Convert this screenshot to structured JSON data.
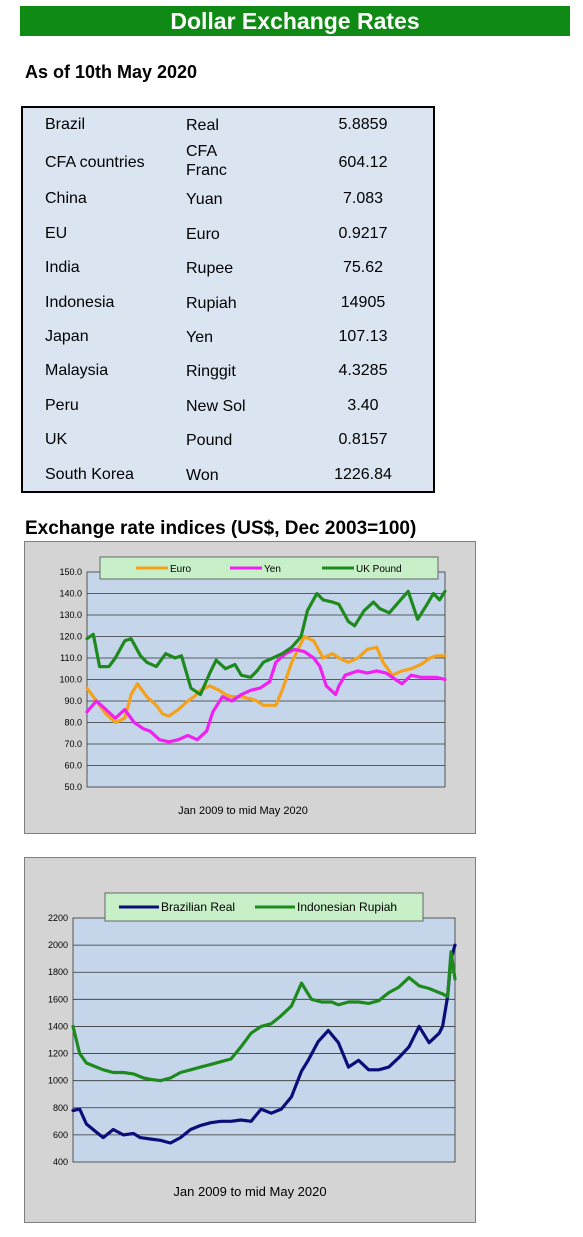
{
  "header": {
    "title": "Dollar Exchange Rates",
    "as_of": "As of 10th May 2020"
  },
  "rates_table": {
    "rows": [
      {
        "country": "Brazil",
        "currency": "Real",
        "rate": "5.8859"
      },
      {
        "country": "CFA countries",
        "currency": "CFA Franc",
        "rate": "604.12"
      },
      {
        "country": "China",
        "currency": "Yuan",
        "rate": "7.083"
      },
      {
        "country": "EU",
        "currency": "Euro",
        "rate": "0.9217"
      },
      {
        "country": "India",
        "currency": "Rupee",
        "rate": "75.62"
      },
      {
        "country": "Indonesia",
        "currency": "Rupiah",
        "rate": "14905"
      },
      {
        "country": "Japan",
        "currency": "Yen",
        "rate": "107.13"
      },
      {
        "country": "Malaysia",
        "currency": "Ringgit",
        "rate": "4.3285"
      },
      {
        "country": "Peru",
        "currency": "New Sol",
        "rate": "3.40"
      },
      {
        "country": "UK",
        "currency": "Pound",
        "rate": "0.8157"
      },
      {
        "country": "South Korea",
        "currency": "Won",
        "rate": "1226.84"
      }
    ]
  },
  "section_title": "Exchange rate indices (US$, Dec 2003=100)",
  "chart_data": [
    {
      "type": "line",
      "caption": "Jan 2009  to mid May 2020",
      "ylim": [
        50,
        150
      ],
      "yticks": [
        "50.0",
        "60.0",
        "70.0",
        "80.0",
        "90.0",
        "100.0",
        "110.0",
        "120.0",
        "130.0",
        "140.0",
        "150.0"
      ],
      "grid": true,
      "legend_position": "top",
      "x_range": [
        2009.0,
        2020.37
      ],
      "series": [
        {
          "name": "Euro",
          "color": "#f4a21c",
          "x": [
            2009.0,
            2009.3,
            2009.6,
            2009.9,
            2010.2,
            2010.4,
            2010.6,
            2010.9,
            2011.2,
            2011.4,
            2011.6,
            2011.9,
            2012.2,
            2012.4,
            2012.6,
            2012.9,
            2013.2,
            2013.4,
            2013.6,
            2013.9,
            2014.2,
            2014.4,
            2014.6,
            2014.9,
            2015.0,
            2015.2,
            2015.5,
            2015.9,
            2016.2,
            2016.5,
            2016.8,
            2017.0,
            2017.3,
            2017.6,
            2017.9,
            2018.2,
            2018.4,
            2018.7,
            2019.0,
            2019.3,
            2019.6,
            2019.9,
            2020.1,
            2020.37
          ],
          "y": [
            96,
            90,
            84,
            80,
            82,
            93,
            98,
            92,
            88,
            84,
            83,
            86,
            90,
            92,
            95,
            97,
            95,
            93,
            92,
            92,
            91,
            90,
            88,
            88,
            88,
            95,
            108,
            120,
            118,
            110,
            112,
            110,
            108,
            110,
            114,
            115,
            108,
            102,
            104,
            105,
            107,
            110,
            111,
            111
          ]
        },
        {
          "name": "Yen",
          "color": "#f020f0",
          "x": [
            2009.0,
            2009.3,
            2009.6,
            2009.9,
            2010.2,
            2010.5,
            2010.8,
            2011.0,
            2011.3,
            2011.6,
            2011.9,
            2012.2,
            2012.5,
            2012.8,
            2013.0,
            2013.3,
            2013.6,
            2013.9,
            2014.2,
            2014.5,
            2014.8,
            2015.0,
            2015.3,
            2015.6,
            2015.9,
            2016.2,
            2016.4,
            2016.6,
            2016.9,
            2017.0,
            2017.2,
            2017.6,
            2017.9,
            2018.2,
            2018.5,
            2018.8,
            2019.0,
            2019.3,
            2019.6,
            2019.9,
            2020.1,
            2020.37
          ],
          "y": [
            85,
            90,
            86,
            82,
            86,
            80,
            77,
            76,
            72,
            71,
            72,
            74,
            72,
            76,
            85,
            92,
            90,
            93,
            95,
            96,
            99,
            108,
            112,
            114,
            113,
            110,
            106,
            97,
            93,
            97,
            102,
            104,
            103,
            104,
            103,
            100,
            98,
            102,
            101,
            101,
            101,
            100
          ]
        },
        {
          "name": "UK Pound",
          "color": "#1e8a1e",
          "x": [
            2009.0,
            2009.2,
            2009.4,
            2009.7,
            2009.9,
            2010.2,
            2010.4,
            2010.7,
            2010.9,
            2011.2,
            2011.5,
            2011.8,
            2012.0,
            2012.3,
            2012.6,
            2012.9,
            2013.1,
            2013.4,
            2013.7,
            2013.9,
            2014.2,
            2014.4,
            2014.6,
            2014.9,
            2015.2,
            2015.5,
            2015.8,
            2016.0,
            2016.3,
            2016.5,
            2016.8,
            2017.0,
            2017.3,
            2017.5,
            2017.8,
            2018.1,
            2018.3,
            2018.6,
            2018.9,
            2019.2,
            2019.5,
            2019.8,
            2020.0,
            2020.2,
            2020.37
          ],
          "y": [
            119,
            121,
            106,
            106,
            110,
            118,
            119,
            111,
            108,
            106,
            112,
            110,
            111,
            96,
            93,
            103,
            109,
            105,
            107,
            102,
            101,
            104,
            108,
            110,
            112,
            115,
            120,
            132,
            140,
            137,
            136,
            135,
            127,
            125,
            132,
            136,
            133,
            131,
            136,
            141,
            128,
            135,
            140,
            137,
            141
          ]
        }
      ]
    },
    {
      "type": "line",
      "caption": "Jan 2009  to mid May 2020",
      "ylim": [
        400,
        2200
      ],
      "yticks": [
        "400",
        "600",
        "800",
        "1000",
        "1200",
        "1400",
        "1600",
        "1800",
        "2000",
        "2200"
      ],
      "grid": true,
      "legend_position": "top",
      "x_range": [
        2009.0,
        2020.37
      ],
      "series": [
        {
          "name": "Brazilian Real",
          "color": "#0d0d7a",
          "x": [
            2009.0,
            2009.2,
            2009.4,
            2009.7,
            2009.9,
            2010.2,
            2010.5,
            2010.8,
            2011.0,
            2011.3,
            2011.6,
            2011.9,
            2012.2,
            2012.5,
            2012.8,
            2013.1,
            2013.4,
            2013.7,
            2014.0,
            2014.3,
            2014.6,
            2014.9,
            2015.2,
            2015.5,
            2015.8,
            2016.0,
            2016.3,
            2016.6,
            2016.9,
            2017.2,
            2017.5,
            2017.8,
            2018.1,
            2018.4,
            2018.7,
            2019.0,
            2019.3,
            2019.6,
            2019.9,
            2020.0,
            2020.15,
            2020.25,
            2020.37
          ],
          "y": [
            780,
            790,
            680,
            620,
            580,
            640,
            600,
            610,
            580,
            570,
            560,
            540,
            580,
            640,
            670,
            690,
            700,
            700,
            710,
            700,
            790,
            760,
            790,
            880,
            1070,
            1150,
            1290,
            1370,
            1280,
            1100,
            1150,
            1080,
            1080,
            1100,
            1170,
            1250,
            1400,
            1280,
            1350,
            1400,
            1620,
            1900,
            2000
          ]
        },
        {
          "name": "Indonesian Rupiah",
          "color": "#1e8a1e",
          "x": [
            2009.0,
            2009.2,
            2009.4,
            2009.7,
            2009.9,
            2010.2,
            2010.5,
            2010.8,
            2011.1,
            2011.3,
            2011.6,
            2011.9,
            2012.2,
            2012.5,
            2012.8,
            2013.1,
            2013.4,
            2013.7,
            2014.0,
            2014.3,
            2014.6,
            2014.9,
            2015.2,
            2015.5,
            2015.8,
            2016.1,
            2016.4,
            2016.7,
            2016.9,
            2017.2,
            2017.5,
            2017.8,
            2018.1,
            2018.4,
            2018.7,
            2019.0,
            2019.3,
            2019.6,
            2019.9,
            2020.0,
            2020.15,
            2020.25,
            2020.37
          ],
          "y": [
            1400,
            1200,
            1130,
            1100,
            1080,
            1060,
            1060,
            1050,
            1020,
            1010,
            1000,
            1020,
            1060,
            1080,
            1100,
            1120,
            1140,
            1160,
            1250,
            1350,
            1400,
            1420,
            1480,
            1550,
            1720,
            1600,
            1580,
            1580,
            1560,
            1580,
            1580,
            1570,
            1590,
            1650,
            1690,
            1760,
            1700,
            1680,
            1650,
            1640,
            1620,
            1950,
            1750
          ]
        }
      ]
    }
  ]
}
